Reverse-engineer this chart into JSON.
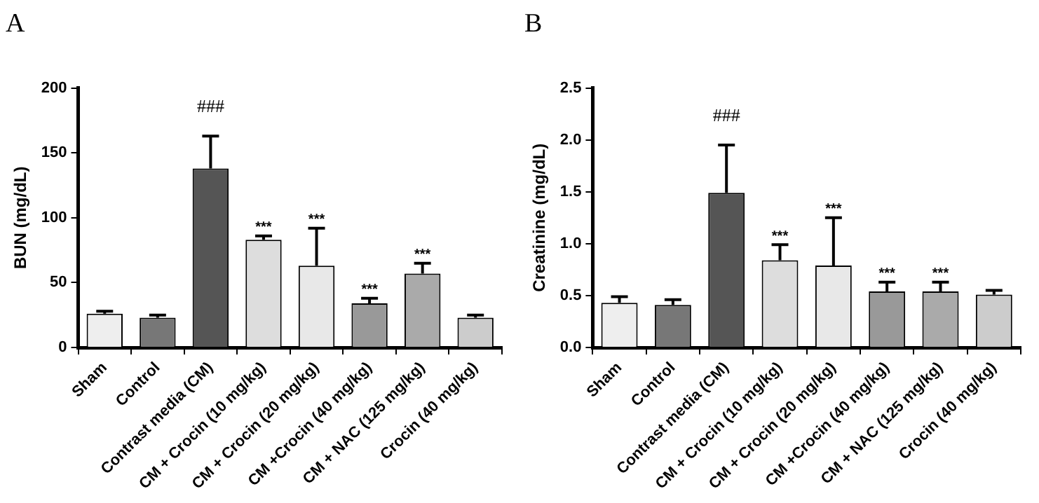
{
  "chart_data": [
    {
      "type": "bar",
      "title": "A",
      "ylabel": "BUN (mg/dL)",
      "categories": [
        "Sham",
        "Control",
        "Contrast media (CM)",
        "CM + Crocin (10 mg/kg)",
        "CM + Crocin (20 mg/kg)",
        "CM +Crocin (40 mg/kg)",
        "CM + NAC (125 mg/kg)",
        "Crocin (40 mg/kg)"
      ],
      "values": [
        26,
        23,
        138,
        83,
        63,
        34,
        57,
        23
      ],
      "errors": [
        [
          26,
          28
        ],
        [
          23,
          25
        ],
        [
          138,
          163
        ],
        [
          83,
          86
        ],
        [
          63,
          92
        ],
        [
          34,
          38
        ],
        [
          57,
          65
        ],
        [
          23,
          25
        ]
      ],
      "colors": [
        "#eeeeee",
        "#777777",
        "#555555",
        "#dddddd",
        "#e8e8e8",
        "#999999",
        "#aaaaaa",
        "#cccccc"
      ],
      "ylim": [
        0,
        200
      ],
      "yticks": [
        0,
        50,
        100,
        150,
        200
      ],
      "grid": false,
      "legend": false,
      "annotations": [
        {
          "text": "###",
          "x": "Contrast media (CM)",
          "y": 163
        },
        {
          "text": "***",
          "x": "CM + Crocin (10 mg/kg)",
          "y": 86
        },
        {
          "text": "***",
          "x": "CM + Crocin (20 mg/kg)",
          "y": 92
        },
        {
          "text": "***",
          "x": "CM +Crocin (40 mg/kg)",
          "y": 38
        },
        {
          "text": "***",
          "x": "CM + NAC (125 mg/kg)",
          "y": 65
        }
      ]
    },
    {
      "type": "bar",
      "title": "B",
      "ylabel": "Creatinine (mg/dL)",
      "categories": [
        "Sham",
        "Control",
        "Contrast media (CM)",
        "CM + Crocin (10 mg/kg)",
        "CM + Crocin (20 mg/kg)",
        "CM +Crocin (40 mg/kg)",
        "CM + NAC (125 mg/kg)",
        "Crocin (40 mg/kg)"
      ],
      "values": [
        0.43,
        0.41,
        1.49,
        0.84,
        0.79,
        0.54,
        0.54,
        0.51
      ],
      "errors": [
        [
          0.43,
          0.49
        ],
        [
          0.41,
          0.46
        ],
        [
          1.49,
          1.95
        ],
        [
          0.84,
          0.99
        ],
        [
          0.79,
          1.25
        ],
        [
          0.54,
          0.63
        ],
        [
          0.54,
          0.63
        ],
        [
          0.51,
          0.55
        ]
      ],
      "colors": [
        "#eeeeee",
        "#777777",
        "#555555",
        "#dddddd",
        "#e8e8e8",
        "#999999",
        "#aaaaaa",
        "#cccccc"
      ],
      "ylim": [
        0,
        2.5
      ],
      "yticks": [
        {
          "value": 0,
          "label": "0.0"
        },
        {
          "value": 0.5,
          "label": "0.5"
        },
        {
          "value": 1,
          "label": "1.0"
        },
        {
          "value": 1.5,
          "label": "1.5"
        },
        {
          "value": 2,
          "label": "2.0"
        },
        {
          "value": 2.5,
          "label": "2.5"
        }
      ],
      "grid": false,
      "legend": false,
      "annotations": [
        {
          "text": "###",
          "x": "Contrast media (CM)",
          "y": 1.95
        },
        {
          "text": "***",
          "x": "CM + Crocin (10 mg/kg)",
          "y": 0.99
        },
        {
          "text": "***",
          "x": "CM + Crocin (20 mg/kg)",
          "y": 1.25
        },
        {
          "text": "***",
          "x": "CM +Crocin (40 mg/kg)",
          "y": 0.63
        },
        {
          "text": "***",
          "x": "CM + NAC (125 mg/kg)",
          "y": 0.63
        }
      ]
    }
  ]
}
